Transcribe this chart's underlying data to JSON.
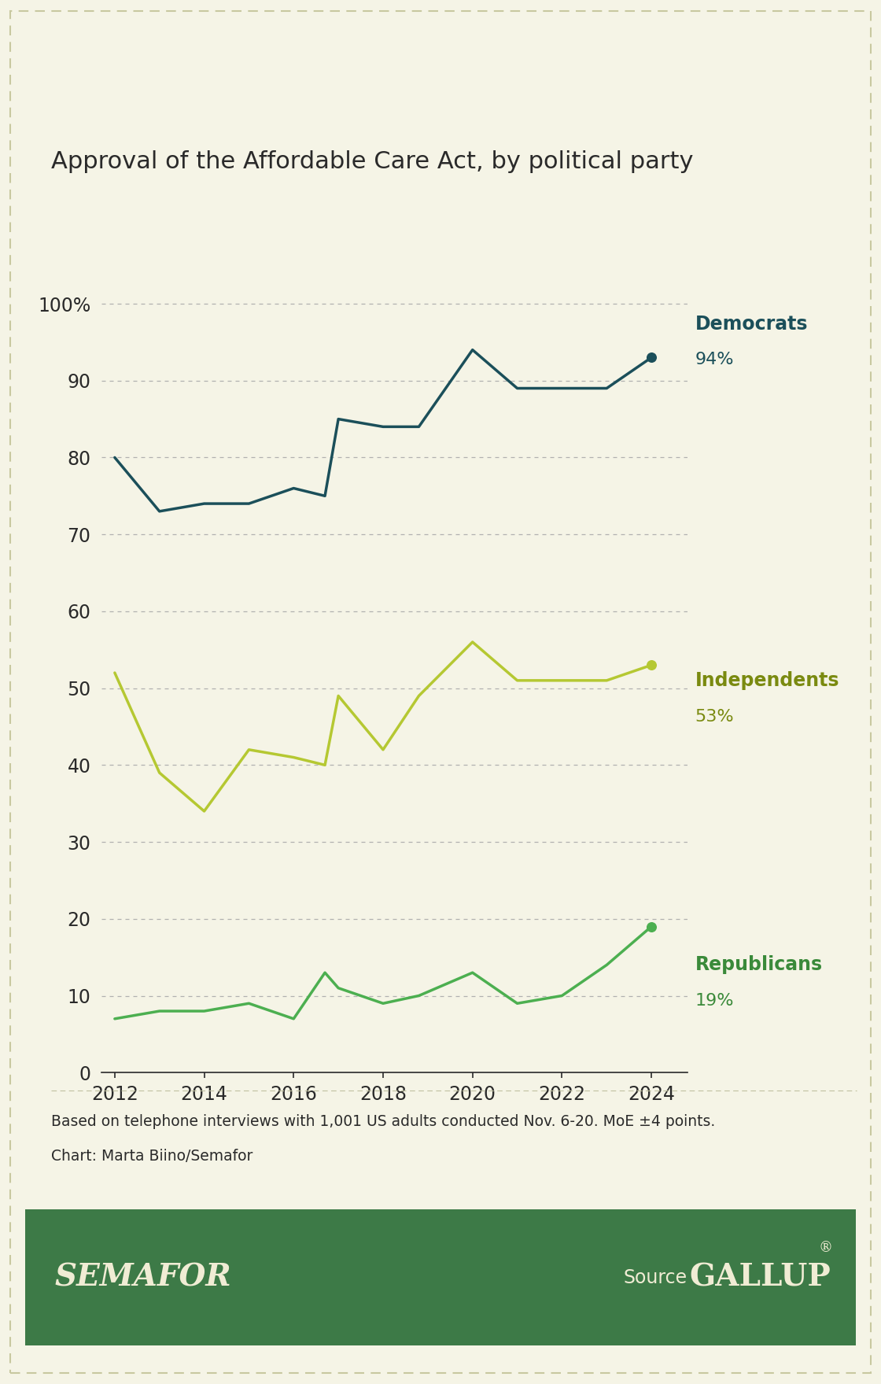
{
  "title": "Approval of the Affordable Care Act, by political party",
  "x": [
    2012,
    2013,
    2014,
    2015,
    2016,
    2016.7,
    2017,
    2018,
    2018.8,
    2020,
    2021,
    2022,
    2023,
    2024
  ],
  "democrats": [
    80,
    73,
    74,
    74,
    76,
    75,
    85,
    84,
    84,
    94,
    89,
    89,
    89,
    93
  ],
  "independents": [
    52,
    39,
    34,
    42,
    41,
    40,
    49,
    42,
    49,
    56,
    51,
    51,
    51,
    53
  ],
  "republicans": [
    7,
    8,
    8,
    9,
    7,
    13,
    11,
    9,
    10,
    13,
    9,
    10,
    14,
    19
  ],
  "dem_color": "#1b4f5a",
  "ind_color": "#b5c832",
  "ind_label_color": "#7a8a10",
  "rep_color": "#4caf50",
  "rep_label_color": "#3a8a3a",
  "background_color": "#f5f4e6",
  "footer_color": "#3d7a47",
  "grid_color": "#aaaaaa",
  "text_color": "#2a2a2a",
  "footer_text_color": "#f0ecd4",
  "note_text": "Based on telephone interviews with 1,001 US adults conducted Nov. 6-20. MoE ±4 points.",
  "credit_text": "Chart: Marta Biino/Semafor",
  "semafor_text": "SEMAFOR",
  "source_label": "Source",
  "gallup_text": "GALLUP",
  "gallup_reg": "®",
  "ylim_min": 0,
  "ylim_max": 108,
  "xlabel_ticks": [
    2012,
    2014,
    2016,
    2018,
    2020,
    2022,
    2024
  ],
  "ytick_vals": [
    0,
    10,
    20,
    30,
    40,
    50,
    60,
    70,
    80,
    90,
    100
  ]
}
